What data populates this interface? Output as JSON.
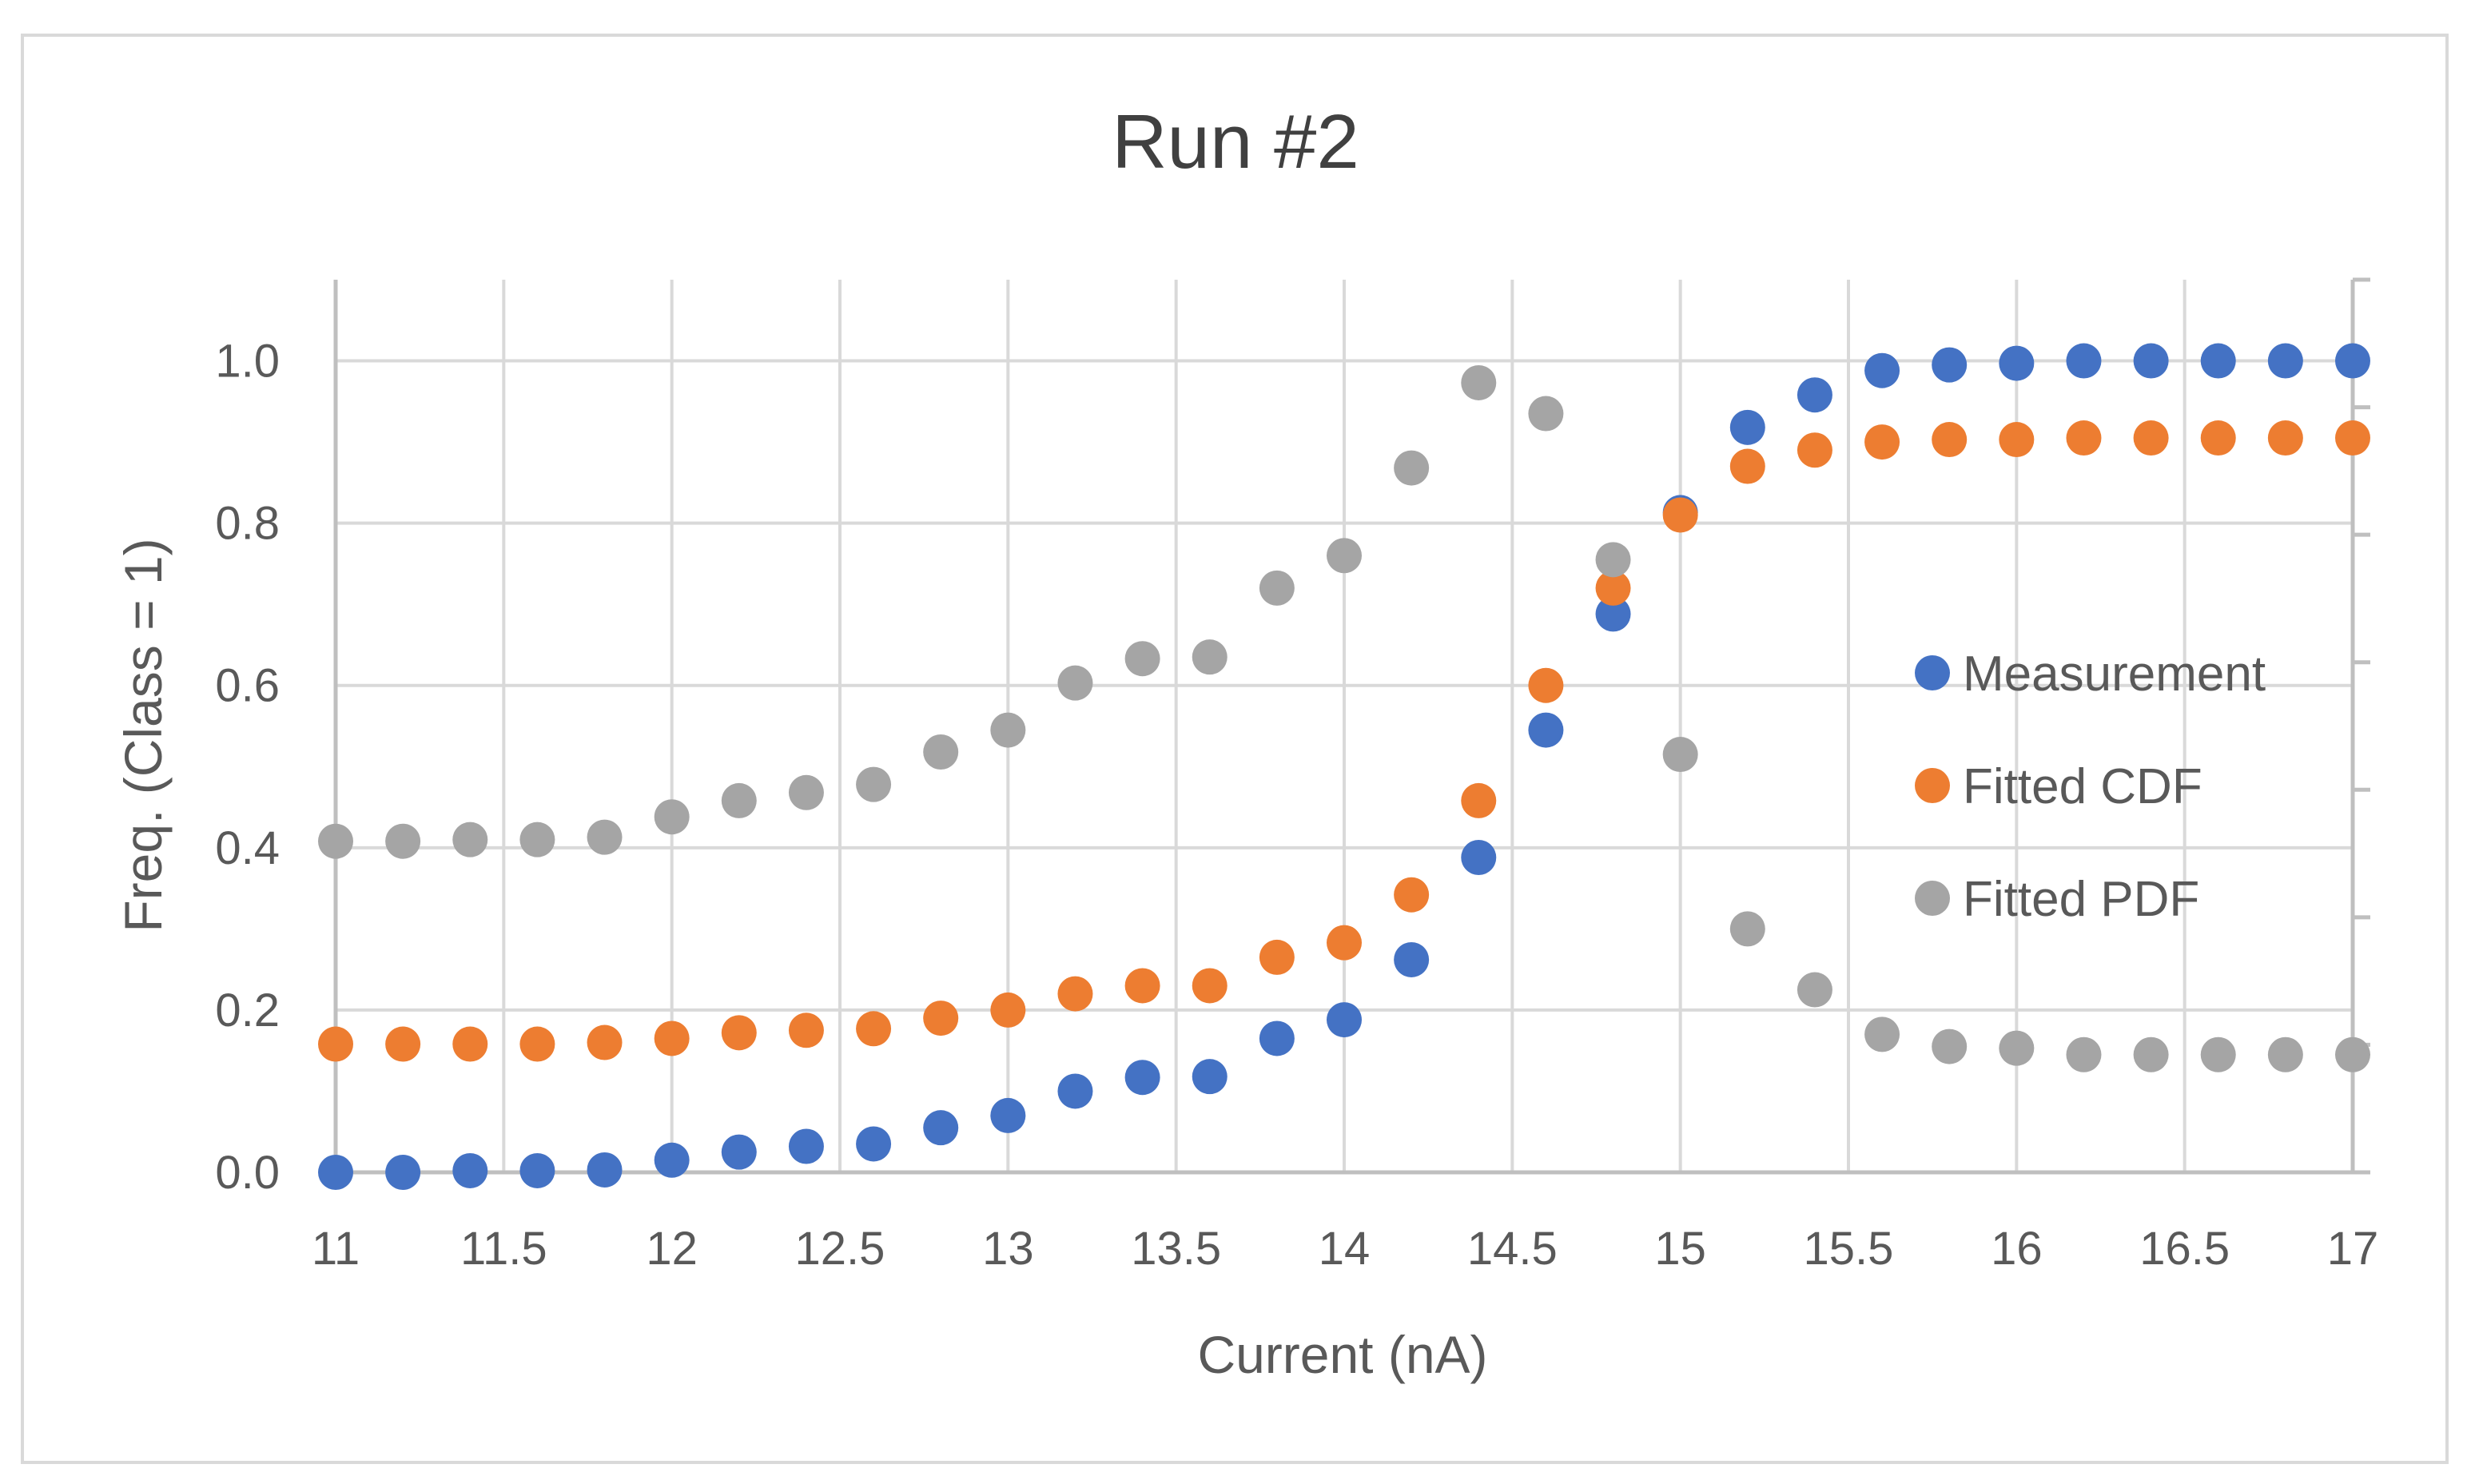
{
  "chart_data": {
    "type": "scatter",
    "title": "Run #2",
    "xlabel": "Current (nA)",
    "ylabel": "Freq. (Class = 1)",
    "xlim": [
      11,
      17
    ],
    "ylim": [
      0,
      1.1
    ],
    "xticks": [
      "11",
      "11.5",
      "12",
      "12.5",
      "13",
      "13.5",
      "14",
      "14.5",
      "15",
      "15.5",
      "16",
      "16.5",
      "17"
    ],
    "xtick_values": [
      11,
      11.5,
      12,
      12.5,
      13,
      13.5,
      14,
      14.5,
      15,
      15.5,
      16,
      16.5,
      17
    ],
    "yticks": [
      "0.0",
      "0.2",
      "0.4",
      "0.6",
      "0.8",
      "1.0"
    ],
    "ytick_values": [
      0,
      0.2,
      0.4,
      0.6,
      0.8,
      1.0
    ],
    "grid": true,
    "legend_position": "right",
    "x": [
      11.0,
      11.2,
      11.4,
      11.6,
      11.8,
      12.0,
      12.2,
      12.4,
      12.6,
      12.8,
      13.0,
      13.2,
      13.4,
      13.6,
      13.8,
      14.0,
      14.2,
      14.4,
      14.6,
      14.8,
      15.0,
      15.2,
      15.4,
      15.6,
      15.8,
      16.0,
      16.2,
      16.4,
      16.6,
      16.8,
      17.0
    ],
    "series": [
      {
        "name": "Measurement",
        "color": "#4472c4",
        "values": [
          0.0,
          0.0,
          0.002,
          0.002,
          0.003,
          0.015,
          0.025,
          0.032,
          0.035,
          0.055,
          0.07,
          0.1,
          0.117,
          0.118,
          0.165,
          0.188,
          0.262,
          0.388,
          0.545,
          0.688,
          0.813,
          0.918,
          0.958,
          0.988,
          0.995,
          0.997,
          1.0,
          1.0,
          1.0,
          1.0,
          1.0
        ]
      },
      {
        "name": "Fitted CDF",
        "color": "#ed7d31",
        "values": [
          0.158,
          0.158,
          0.158,
          0.158,
          0.16,
          0.165,
          0.172,
          0.175,
          0.177,
          0.19,
          0.2,
          0.22,
          0.23,
          0.23,
          0.265,
          0.283,
          0.342,
          0.458,
          0.6,
          0.72,
          0.81,
          0.87,
          0.89,
          0.9,
          0.903,
          0.903,
          0.905,
          0.905,
          0.905,
          0.905,
          0.905
        ]
      },
      {
        "name": "Fitted PDF",
        "color": "#a5a5a5",
        "values": [
          0.408,
          0.408,
          0.41,
          0.41,
          0.413,
          0.438,
          0.458,
          0.468,
          0.478,
          0.518,
          0.545,
          0.603,
          0.633,
          0.635,
          0.72,
          0.76,
          0.868,
          0.973,
          0.935,
          0.755,
          0.515,
          0.3,
          0.225,
          0.17,
          0.155,
          0.153,
          0.145,
          0.145,
          0.145,
          0.145,
          0.145
        ]
      }
    ]
  }
}
